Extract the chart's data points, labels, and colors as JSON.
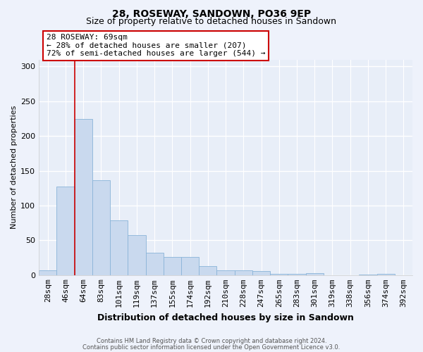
{
  "title1": "28, ROSEWAY, SANDOWN, PO36 9EP",
  "title2": "Size of property relative to detached houses in Sandown",
  "xlabel": "Distribution of detached houses by size in Sandown",
  "ylabel": "Number of detached properties",
  "categories": [
    "28sqm",
    "46sqm",
    "64sqm",
    "83sqm",
    "101sqm",
    "119sqm",
    "137sqm",
    "155sqm",
    "174sqm",
    "192sqm",
    "210sqm",
    "228sqm",
    "247sqm",
    "265sqm",
    "283sqm",
    "301sqm",
    "319sqm",
    "338sqm",
    "356sqm",
    "374sqm",
    "392sqm"
  ],
  "values": [
    7,
    127,
    225,
    136,
    79,
    57,
    32,
    26,
    26,
    13,
    7,
    7,
    6,
    2,
    2,
    3,
    0,
    0,
    1,
    2,
    0
  ],
  "bar_color": "#c9d9ee",
  "bar_edge_color": "#8ab4d8",
  "vline_x": 1.5,
  "vline_color": "#cc0000",
  "annotation_text": "28 ROSEWAY: 69sqm\n← 28% of detached houses are smaller (207)\n72% of semi-detached houses are larger (544) →",
  "annotation_box_color": "#ffffff",
  "annotation_box_edge": "#cc0000",
  "footer1": "Contains HM Land Registry data © Crown copyright and database right 2024.",
  "footer2": "Contains public sector information licensed under the Open Government Licence v3.0.",
  "bg_color": "#eef2fb",
  "plot_bg_color": "#e8eef8",
  "ylim": [
    0,
    310
  ],
  "yticks": [
    0,
    50,
    100,
    150,
    200,
    250,
    300
  ],
  "title1_fontsize": 10,
  "title2_fontsize": 9,
  "xlabel_fontsize": 9,
  "ylabel_fontsize": 8,
  "tick_fontsize": 8,
  "annot_fontsize": 8
}
